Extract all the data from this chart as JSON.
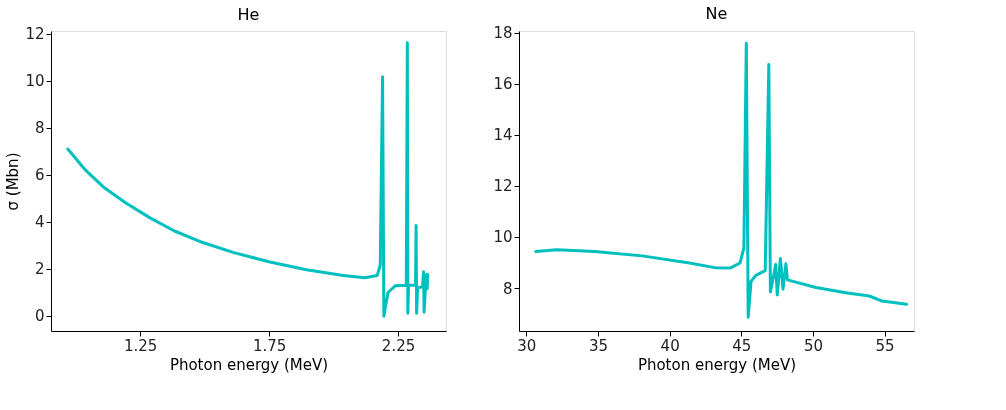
{
  "chart_data": [
    {
      "type": "line",
      "title": "He",
      "xlabel": "Photon energy (MeV)",
      "ylabel": "σ (Mbn)",
      "xlim": [
        0.904,
        2.436
      ],
      "ylim": [
        -0.66,
        12.12
      ],
      "xticks": [
        1.25,
        1.75,
        2.25
      ],
      "yticks": [
        0,
        2,
        4,
        6,
        8,
        10,
        12
      ],
      "grid": false,
      "series": [
        {
          "color": "#00bfbf",
          "x": [
            0.969,
            1.038,
            1.11,
            1.193,
            1.288,
            1.383,
            1.49,
            1.61,
            1.753,
            1.895,
            2.038,
            2.121,
            2.169,
            2.181,
            2.19,
            2.195,
            2.211,
            2.24,
            2.282,
            2.286,
            2.288,
            2.291,
            2.318,
            2.32,
            2.322,
            2.326,
            2.345,
            2.349,
            2.351,
            2.356,
            2.361,
            2.363,
            2.365
          ],
          "values": [
            7.09,
            6.19,
            5.45,
            4.8,
            4.16,
            3.6,
            3.12,
            2.69,
            2.28,
            1.95,
            1.7,
            1.61,
            1.7,
            2.15,
            10.17,
            -0.03,
            0.98,
            1.27,
            1.29,
            11.62,
            0.1,
            1.29,
            1.29,
            3.83,
            0.1,
            1.18,
            1.22,
            1.86,
            0.14,
            1.14,
            1.75,
            1.14,
            1.75
          ]
        }
      ]
    },
    {
      "type": "line",
      "title": "Ne",
      "xlabel": "Photon energy (MeV)",
      "xlim": [
        29.49,
        57.05
      ],
      "ylim": [
        6.32,
        18.06
      ],
      "xticks": [
        30,
        35,
        40,
        45,
        50,
        55
      ],
      "yticks": [
        8,
        10,
        12,
        14,
        16,
        18
      ],
      "grid": false,
      "series": [
        {
          "color": "#00bfbf",
          "x": [
            30.66,
            32.14,
            34.78,
            38.08,
            41.39,
            43.15,
            44.25,
            44.91,
            45.18,
            45.35,
            45.48,
            45.68,
            46.01,
            46.67,
            46.92,
            47.03,
            47.22,
            47.4,
            47.51,
            47.73,
            47.91,
            48.11,
            48.22,
            50.2,
            52.4,
            53.94,
            54.82,
            56.54
          ],
          "values": [
            9.43,
            9.5,
            9.43,
            9.26,
            8.98,
            8.8,
            8.79,
            8.98,
            9.57,
            17.58,
            6.86,
            8.26,
            8.5,
            8.68,
            16.75,
            7.85,
            8.38,
            8.92,
            7.73,
            9.16,
            7.96,
            8.95,
            8.32,
            8.02,
            7.81,
            7.69,
            7.49,
            7.37
          ]
        }
      ]
    }
  ]
}
